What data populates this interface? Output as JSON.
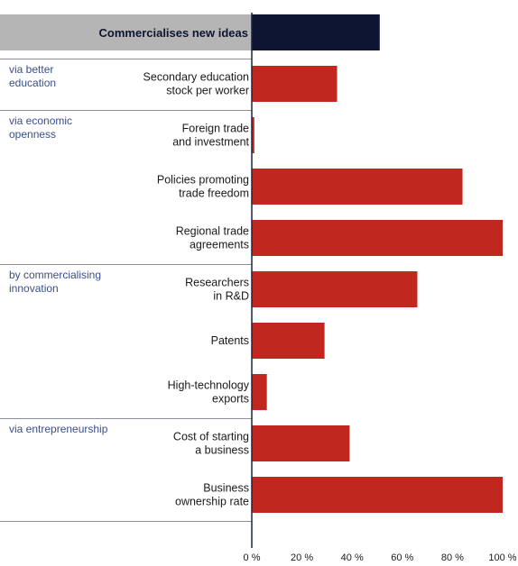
{
  "chart_data": {
    "type": "bar",
    "orientation": "horizontal",
    "header": {
      "label": "Commercialises new ideas",
      "value": 51,
      "color": "#0d1533"
    },
    "rows": [
      {
        "group": "via better education",
        "label": [
          "Secondary education",
          "stock per worker"
        ],
        "value": 34
      },
      {
        "group": "via economic openness",
        "label": [
          "Foreign trade",
          "and investment"
        ],
        "value": 1
      },
      {
        "group": "",
        "label": [
          "Policies promoting",
          "trade freedom"
        ],
        "value": 84
      },
      {
        "group": "",
        "label": [
          "Regional trade",
          "agreements"
        ],
        "value": 100
      },
      {
        "group": "by commercialising innovation",
        "label": [
          "Researchers",
          "in R&D"
        ],
        "value": 66
      },
      {
        "group": "",
        "label": [
          "Patents"
        ],
        "value": 29
      },
      {
        "group": "",
        "label": [
          "High-technology",
          "exports"
        ],
        "value": 6
      },
      {
        "group": "via entrepreneurship",
        "label": [
          "Cost of starting",
          "a business"
        ],
        "value": 39
      },
      {
        "group": "",
        "label": [
          "Business",
          "ownership rate"
        ],
        "value": 100
      }
    ],
    "group_label_lines": {
      "via better education": [
        "via better",
        "education"
      ],
      "via economic openness": [
        "via economic",
        "openness"
      ],
      "by commercialising innovation": [
        "by commercialising",
        "innovation"
      ],
      "via entrepreneurship": [
        "via entrepreneurship"
      ]
    },
    "xlim": [
      0,
      100
    ],
    "xticks": [
      0,
      20,
      40,
      60,
      80,
      100
    ],
    "xtick_labels": [
      "0 %",
      "20 %",
      "40 %",
      "60 %",
      "80 %",
      "100 %"
    ],
    "bar_color": "#c0281f",
    "header_band_color": "#b5b5b5",
    "separator_color": "#8a8fa0"
  }
}
